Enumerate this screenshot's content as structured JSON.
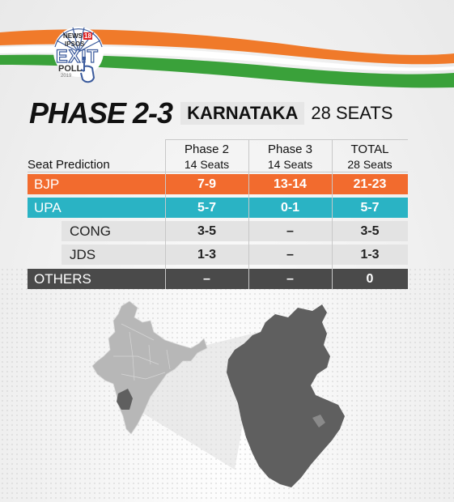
{
  "brand": {
    "network": "NEWS",
    "network_number": "18",
    "partner": "IPSOS",
    "logo_word_1": "EXIT",
    "logo_word_2": "POLL",
    "logo_year": "2019"
  },
  "header": {
    "phase_title": "PHASE 2-3",
    "state": "KARNATAKA",
    "total_seats": "28 SEATS"
  },
  "table": {
    "row_label_header": "Seat Prediction",
    "columns": [
      {
        "name": "Phase 2",
        "sub": "14 Seats"
      },
      {
        "name": "Phase 3",
        "sub": "14 Seats"
      },
      {
        "name": "TOTAL",
        "sub": "28 Seats"
      }
    ],
    "rows": [
      {
        "party": "BJP",
        "values": [
          "7-9",
          "13-14",
          "21-23"
        ]
      },
      {
        "party": "UPA",
        "values": [
          "5-7",
          "0-1",
          "5-7"
        ]
      },
      {
        "party": "CONG",
        "values": [
          "3-5",
          "–",
          "3-5"
        ]
      },
      {
        "party": "JDS",
        "values": [
          "1-3",
          "–",
          "1-3"
        ]
      },
      {
        "party": "OTHERS",
        "values": [
          "–",
          "–",
          "0"
        ]
      }
    ]
  },
  "colors": {
    "saffron": "#f07a2a",
    "green": "#3aa13a",
    "bjp": "#f26b2e",
    "upa": "#2ab3c4",
    "sub_row": "#e3e3e3",
    "others": "#4a4a4a",
    "map_dark": "#5f5f5f",
    "map_light": "#b7b7b7"
  },
  "icons": {
    "logo_wheel": "ashoka-chakra-icon",
    "logo_hand": "voting-finger-icon"
  }
}
